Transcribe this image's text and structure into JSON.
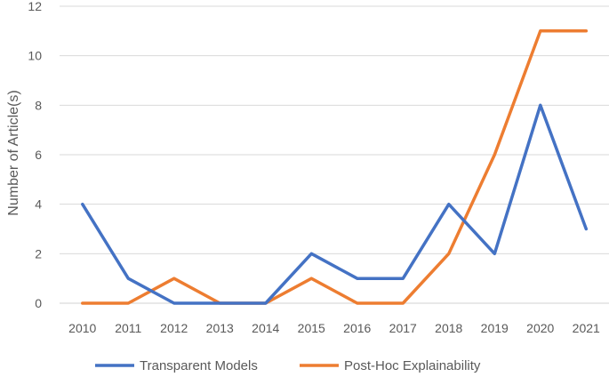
{
  "chart_data": {
    "type": "line",
    "title": "",
    "xlabel": "",
    "ylabel": "Number of Article(s)",
    "categories": [
      "2010",
      "2011",
      "2012",
      "2013",
      "2014",
      "2015",
      "2016",
      "2017",
      "2018",
      "2019",
      "2020",
      "2021"
    ],
    "ylim": [
      0,
      12
    ],
    "yticks": [
      0,
      2,
      4,
      6,
      8,
      10,
      12
    ],
    "grid": true,
    "legend": "bottom",
    "series": [
      {
        "name": "Transparent Models",
        "color": "#4472C4",
        "values": [
          4,
          1,
          0,
          0,
          0,
          2,
          1,
          1,
          4,
          2,
          8,
          3
        ]
      },
      {
        "name": "Post-Hoc Explainability",
        "color": "#ED7D31",
        "values": [
          0,
          0,
          1,
          0,
          0,
          1,
          0,
          0,
          2,
          6,
          11,
          11
        ]
      }
    ]
  }
}
